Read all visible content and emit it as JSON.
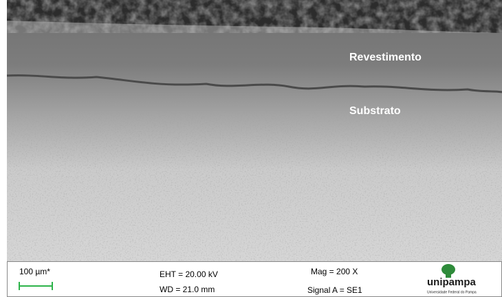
{
  "labels": {
    "coating": "Revestimento",
    "substrate": "Substrato"
  },
  "info": {
    "scale_bar": "100 µm*",
    "eht": "EHT = 20.00 kV",
    "wd": "WD = 21.0 mm",
    "mag": "Mag =  200 X",
    "signal": "Signal A = SE1"
  },
  "logo": {
    "name": "unipampa",
    "subtitle": "Universidade Federal do Pampa"
  }
}
